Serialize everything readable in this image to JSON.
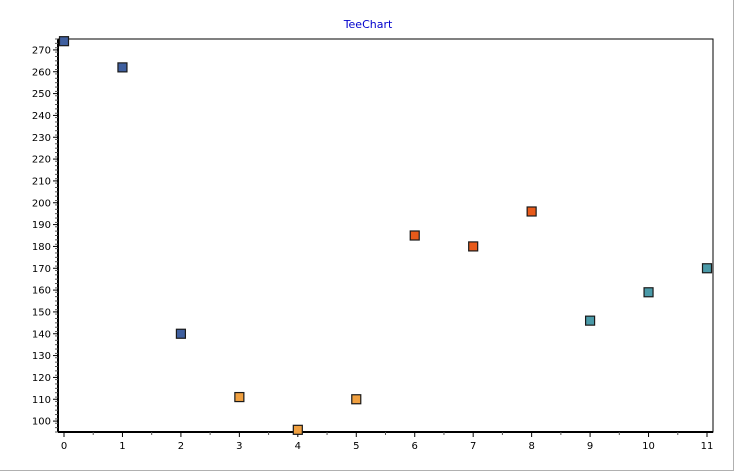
{
  "chart_data": {
    "type": "scatter",
    "title": "TeeChart",
    "xlabel": "",
    "ylabel": "",
    "xlim": [
      0,
      11
    ],
    "ylim": [
      95,
      275
    ],
    "x_ticks": [
      0,
      1,
      2,
      3,
      4,
      5,
      6,
      7,
      8,
      9,
      10,
      11
    ],
    "y_ticks": [
      100,
      110,
      120,
      130,
      140,
      150,
      160,
      170,
      180,
      190,
      200,
      210,
      220,
      230,
      240,
      250,
      260,
      270
    ],
    "grid": false,
    "legend": "none",
    "points": [
      {
        "x": 0,
        "y": 274,
        "color": "#3f5f9f"
      },
      {
        "x": 1,
        "y": 262,
        "color": "#3f5f9f"
      },
      {
        "x": 2,
        "y": 140,
        "color": "#3f5f9f"
      },
      {
        "x": 3,
        "y": 111,
        "color": "#f0a040"
      },
      {
        "x": 4,
        "y": 96,
        "color": "#f0a040"
      },
      {
        "x": 5,
        "y": 110,
        "color": "#f0a040"
      },
      {
        "x": 6,
        "y": 185,
        "color": "#e85a1a"
      },
      {
        "x": 7,
        "y": 180,
        "color": "#e85a1a"
      },
      {
        "x": 8,
        "y": 196,
        "color": "#e85a1a"
      },
      {
        "x": 9,
        "y": 146,
        "color": "#4a9aa8"
      },
      {
        "x": 10,
        "y": 159,
        "color": "#4a9aa8"
      },
      {
        "x": 11,
        "y": 170,
        "color": "#4a9aa8"
      }
    ]
  }
}
